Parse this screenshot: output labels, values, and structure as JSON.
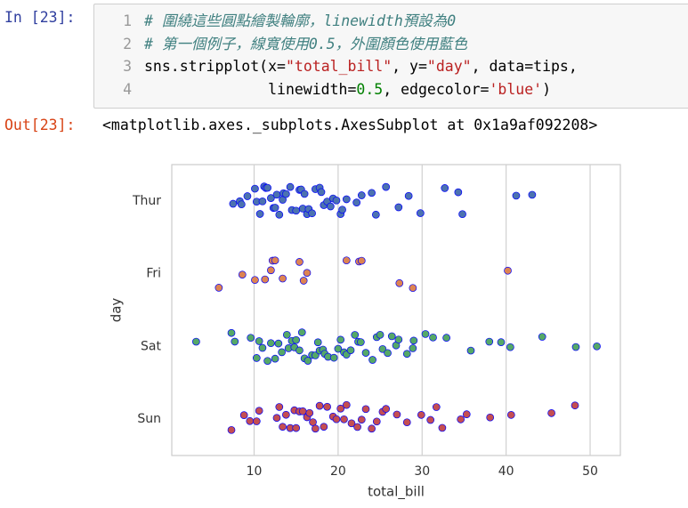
{
  "cell": {
    "in_prompt": "In [23]:",
    "out_prompt": "Out[23]:",
    "line_numbers": [
      1,
      2,
      3,
      4
    ],
    "code": [
      [
        {
          "text": "# 圍繞這些圓點繪製輪廓，linewidth預設為0",
          "kind": "comment"
        }
      ],
      [
        {
          "text": "# 第一個例子，線寬使用0.5，外圍顏色使用藍色",
          "kind": "comment"
        }
      ],
      [
        {
          "text": "sns.stripplot(x=",
          "kind": "plain"
        },
        {
          "text": "\"total_bill\"",
          "kind": "string"
        },
        {
          "text": ", y=",
          "kind": "plain"
        },
        {
          "text": "\"day\"",
          "kind": "string"
        },
        {
          "text": ", data=tips,",
          "kind": "plain"
        }
      ],
      [
        {
          "text": "              linewidth=",
          "kind": "plain"
        },
        {
          "text": "0.5",
          "kind": "number"
        },
        {
          "text": ", edgecolor=",
          "kind": "plain"
        },
        {
          "text": "'blue'",
          "kind": "string"
        },
        {
          "text": ")",
          "kind": "plain"
        }
      ]
    ],
    "output": "<matplotlib.axes._subplots.AxesSubplot at 0x1a9af092208>"
  },
  "chart_data": {
    "type": "strip",
    "x_label": "total_bill",
    "y_label": "day",
    "categories": [
      "Thur",
      "Fri",
      "Sat",
      "Sun"
    ],
    "colors": [
      "#4c72b0",
      "#dd8452",
      "#55a868",
      "#c44e52"
    ],
    "edgecolor": "blue",
    "linewidth": 0.5,
    "values": [
      [
        7.5,
        8.3,
        8.5,
        9.2,
        10.1,
        10.3,
        10.7,
        11.0,
        11.2,
        11.4,
        11.6,
        12.0,
        12.3,
        12.5,
        12.7,
        13.0,
        13.4,
        13.5,
        13.8,
        14.3,
        14.5,
        15.0,
        15.4,
        15.6,
        15.8,
        16.0,
        16.3,
        16.5,
        16.9,
        17.3,
        17.8,
        18.0,
        18.3,
        18.7,
        19.1,
        19.4,
        19.8,
        20.3,
        20.5,
        21.0,
        22.2,
        22.8,
        24.0,
        24.5,
        25.7,
        27.2,
        28.4,
        29.8,
        32.7,
        34.3,
        34.8,
        41.2,
        43.1
      ],
      [
        5.8,
        8.6,
        10.1,
        11.3,
        12.0,
        12.2,
        12.5,
        13.4,
        15.4,
        15.9,
        16.3,
        21.0,
        22.5,
        22.8,
        27.3,
        28.9,
        40.2
      ],
      [
        3.1,
        7.3,
        7.7,
        9.6,
        10.3,
        10.6,
        11.0,
        11.6,
        12.0,
        12.5,
        12.9,
        13.3,
        13.9,
        14.1,
        14.5,
        14.8,
        15.0,
        15.4,
        15.7,
        16.0,
        16.4,
        16.9,
        17.3,
        17.6,
        17.8,
        18.2,
        18.4,
        18.8,
        19.5,
        20.0,
        20.3,
        20.7,
        21.0,
        21.5,
        22.0,
        22.4,
        22.7,
        23.3,
        24.1,
        24.6,
        25.0,
        25.3,
        25.9,
        26.4,
        26.9,
        27.2,
        28.2,
        28.9,
        29.0,
        30.4,
        31.3,
        32.9,
        35.8,
        38.0,
        39.4,
        40.5,
        44.3,
        48.3,
        50.8
      ],
      [
        7.3,
        8.8,
        9.5,
        10.3,
        10.6,
        12.7,
        13.0,
        13.4,
        13.8,
        14.3,
        14.8,
        15.0,
        15.4,
        15.8,
        16.3,
        16.6,
        17.0,
        17.3,
        17.8,
        18.3,
        18.7,
        19.4,
        19.8,
        20.3,
        20.7,
        21.0,
        21.6,
        22.3,
        22.8,
        23.3,
        24.0,
        24.6,
        25.3,
        25.7,
        27.0,
        28.2,
        29.9,
        31.0,
        31.7,
        32.4,
        34.6,
        35.3,
        38.1,
        40.6,
        45.4,
        48.2
      ]
    ],
    "xlim": [
      0.2,
      53.6
    ],
    "xticks": [
      10,
      20,
      30,
      40,
      50
    ],
    "grid": true
  }
}
